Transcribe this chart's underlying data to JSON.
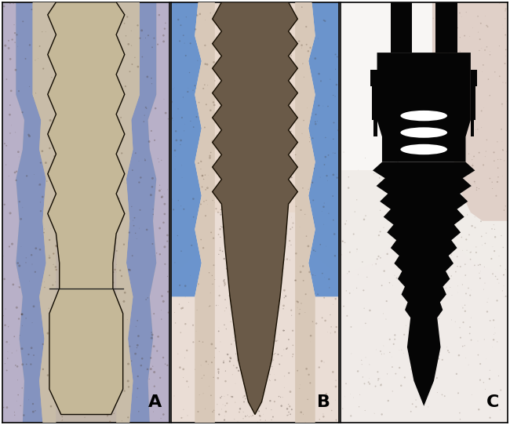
{
  "figsize": [
    6.5,
    5.42
  ],
  "dpi": 100,
  "panels": [
    "A",
    "B",
    "C"
  ],
  "label_fontsize": 16,
  "panel_A": {
    "bg": "#c8bdb0",
    "implant_fill": "#c9b99a",
    "implant_border": "#1a1200",
    "tissue_left_color": "#7b8fc7",
    "tissue_right_color": "#7b8fc7",
    "outer_bg": "#a8a0c8"
  },
  "panel_B": {
    "bg": "#e8d8cc",
    "implant_fill": "#7a6a58",
    "implant_border": "#1a1200",
    "tissue_color": "#5588cc",
    "outer_bg": "#ddc8c0"
  },
  "panel_C": {
    "bg": "#f0ece8",
    "implant_fill": "#050505",
    "tissue_color": "#c8b8b0",
    "outer_bg": "#e8ddd8"
  }
}
